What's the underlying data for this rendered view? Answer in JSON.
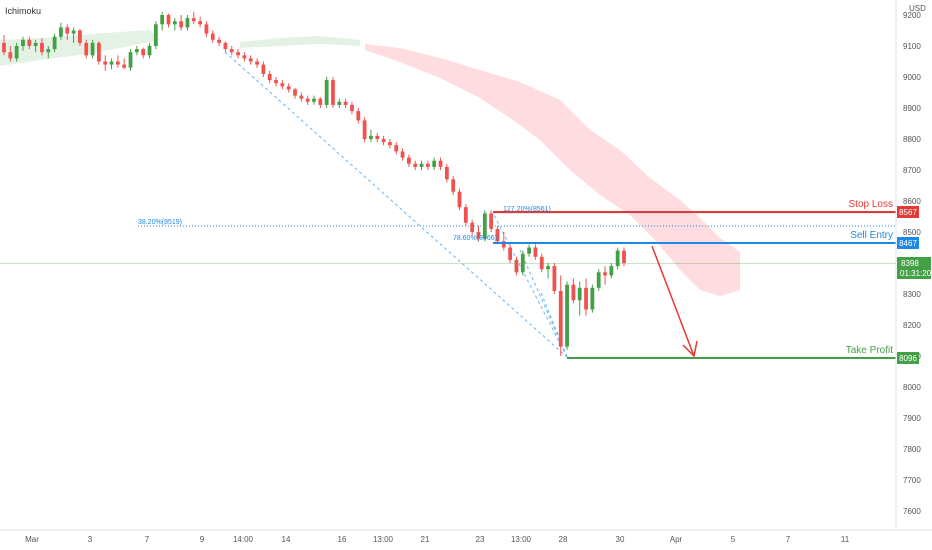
{
  "indicator_label": "Ichimoku",
  "currency": "USD",
  "price_axis": {
    "min": 7550,
    "max": 9250,
    "ticks": [
      9200,
      9100,
      9000,
      8900,
      8800,
      8700,
      8600,
      8500,
      8400,
      8300,
      8200,
      8100,
      8000,
      7900,
      7800,
      7700,
      7600
    ]
  },
  "time_axis": [
    "Mar",
    "3",
    "7",
    "9",
    "14:00",
    "14",
    "16",
    "13:00",
    "21",
    "23",
    "13:00",
    "28",
    "30",
    "Apr",
    "5",
    "7",
    "11"
  ],
  "levels": {
    "stop_loss": {
      "label": "Stop Loss",
      "price": 8567,
      "tag": "8567",
      "color": "#e53935"
    },
    "sell_entry": {
      "label": "Sell Entry",
      "price": 8467,
      "tag": "8467",
      "color": "#1e88e5"
    },
    "take_profit": {
      "label": "Take Profit",
      "price": 8096,
      "tag": "8096",
      "color": "#43a047"
    }
  },
  "current_price": {
    "price": 8398,
    "tag": "8398",
    "countdown": "01:31:20",
    "color": "#43a047"
  },
  "fib_labels": {
    "fib_382": "38.20%(8519)",
    "fib_786": "78.60%(8466)",
    "fib_1272": "127.20%(8561)"
  },
  "colors": {
    "up": "#26a69a",
    "down": "#ef5350",
    "up_candle": "#43a047",
    "cloud_bear": "#ffcdd2",
    "cloud_bull": "#c8e6c9",
    "fib": "#64b5f6",
    "arrow": "#e53935",
    "axis_text": "#555555"
  },
  "candles": [
    [
      9110,
      9135,
      9070,
      9080
    ],
    [
      9080,
      9100,
      9050,
      9060
    ],
    [
      9060,
      9110,
      9050,
      9100
    ],
    [
      9100,
      9130,
      9085,
      9120
    ],
    [
      9120,
      9130,
      9090,
      9100
    ],
    [
      9100,
      9120,
      9080,
      9110
    ],
    [
      9110,
      9125,
      9070,
      9080
    ],
    [
      9080,
      9100,
      9060,
      9090
    ],
    [
      9090,
      9140,
      9080,
      9130
    ],
    [
      9130,
      9175,
      9120,
      9160
    ],
    [
      9160,
      9170,
      9120,
      9140
    ],
    [
      9140,
      9160,
      9110,
      9150
    ],
    [
      9150,
      9155,
      9100,
      9110
    ],
    [
      9110,
      9120,
      9060,
      9070
    ],
    [
      9070,
      9120,
      9060,
      9110
    ],
    [
      9110,
      9115,
      9040,
      9050
    ],
    [
      9050,
      9070,
      9020,
      9040
    ],
    [
      9040,
      9060,
      9025,
      9050
    ],
    [
      9050,
      9070,
      9030,
      9040
    ],
    [
      9040,
      9060,
      9025,
      9030
    ],
    [
      9030,
      9090,
      9020,
      9080
    ],
    [
      9080,
      9100,
      9070,
      9090
    ],
    [
      9090,
      9095,
      9060,
      9070
    ],
    [
      9070,
      9110,
      9060,
      9100
    ],
    [
      9100,
      9180,
      9090,
      9170
    ],
    [
      9170,
      9210,
      9150,
      9200
    ],
    [
      9200,
      9205,
      9160,
      9170
    ],
    [
      9170,
      9190,
      9150,
      9180
    ],
    [
      9180,
      9200,
      9150,
      9160
    ],
    [
      9160,
      9200,
      9150,
      9190
    ],
    [
      9190,
      9210,
      9170,
      9180
    ],
    [
      9180,
      9195,
      9160,
      9170
    ],
    [
      9170,
      9180,
      9130,
      9140
    ],
    [
      9140,
      9150,
      9110,
      9120
    ],
    [
      9120,
      9130,
      9100,
      9110
    ],
    [
      9110,
      9115,
      9080,
      9090
    ],
    [
      9090,
      9100,
      9070,
      9080
    ],
    [
      9080,
      9090,
      9060,
      9070
    ],
    [
      9070,
      9080,
      9050,
      9060
    ],
    [
      9060,
      9070,
      9040,
      9050
    ],
    [
      9050,
      9060,
      9030,
      9040
    ],
    [
      9040,
      9050,
      9000,
      9010
    ],
    [
      9010,
      9020,
      8980,
      8990
    ],
    [
      8990,
      9000,
      8970,
      8980
    ],
    [
      8980,
      8990,
      8960,
      8970
    ],
    [
      8970,
      8980,
      8950,
      8960
    ],
    [
      8960,
      8965,
      8930,
      8940
    ],
    [
      8940,
      8950,
      8920,
      8930
    ],
    [
      8930,
      8940,
      8910,
      8920
    ],
    [
      8920,
      8940,
      8910,
      8930
    ],
    [
      8930,
      8935,
      8900,
      8910
    ],
    [
      8910,
      9000,
      8900,
      8990
    ],
    [
      8990,
      9000,
      8900,
      8910
    ],
    [
      8910,
      8930,
      8900,
      8920
    ],
    [
      8920,
      8930,
      8900,
      8910
    ],
    [
      8910,
      8920,
      8880,
      8890
    ],
    [
      8890,
      8900,
      8850,
      8860
    ],
    [
      8860,
      8870,
      8790,
      8800
    ],
    [
      8800,
      8830,
      8790,
      8810
    ],
    [
      8810,
      8820,
      8790,
      8800
    ],
    [
      8800,
      8810,
      8780,
      8790
    ],
    [
      8790,
      8800,
      8770,
      8780
    ],
    [
      8780,
      8790,
      8750,
      8760
    ],
    [
      8760,
      8770,
      8730,
      8740
    ],
    [
      8740,
      8750,
      8710,
      8720
    ],
    [
      8720,
      8730,
      8700,
      8710
    ],
    [
      8710,
      8730,
      8700,
      8720
    ],
    [
      8720,
      8730,
      8700,
      8710
    ],
    [
      8710,
      8740,
      8700,
      8730
    ],
    [
      8730,
      8740,
      8700,
      8710
    ],
    [
      8710,
      8720,
      8660,
      8670
    ],
    [
      8670,
      8680,
      8620,
      8630
    ],
    [
      8630,
      8640,
      8570,
      8580
    ],
    [
      8580,
      8590,
      8520,
      8530
    ],
    [
      8530,
      8540,
      8490,
      8500
    ],
    [
      8500,
      8520,
      8470,
      8480
    ],
    [
      8480,
      8570,
      8470,
      8560
    ],
    [
      8560,
      8570,
      8500,
      8510
    ],
    [
      8510,
      8520,
      8460,
      8470
    ],
    [
      8470,
      8500,
      8440,
      8450
    ],
    [
      8450,
      8460,
      8400,
      8410
    ],
    [
      8410,
      8420,
      8360,
      8370
    ],
    [
      8370,
      8440,
      8360,
      8430
    ],
    [
      8430,
      8460,
      8420,
      8450
    ],
    [
      8450,
      8460,
      8410,
      8420
    ],
    [
      8420,
      8430,
      8370,
      8380
    ],
    [
      8380,
      8400,
      8350,
      8390
    ],
    [
      8390,
      8400,
      8300,
      8310
    ],
    [
      8310,
      8360,
      8100,
      8130
    ],
    [
      8130,
      8340,
      8120,
      8330
    ],
    [
      8330,
      8350,
      8270,
      8280
    ],
    [
      8280,
      8340,
      8230,
      8320
    ],
    [
      8320,
      8350,
      8230,
      8250
    ],
    [
      8250,
      8330,
      8240,
      8320
    ],
    [
      8320,
      8380,
      8310,
      8370
    ],
    [
      8370,
      8390,
      8330,
      8360
    ],
    [
      8360,
      8400,
      8350,
      8390
    ],
    [
      8390,
      8450,
      8380,
      8440
    ],
    [
      8440,
      8450,
      8390,
      8400
    ]
  ]
}
